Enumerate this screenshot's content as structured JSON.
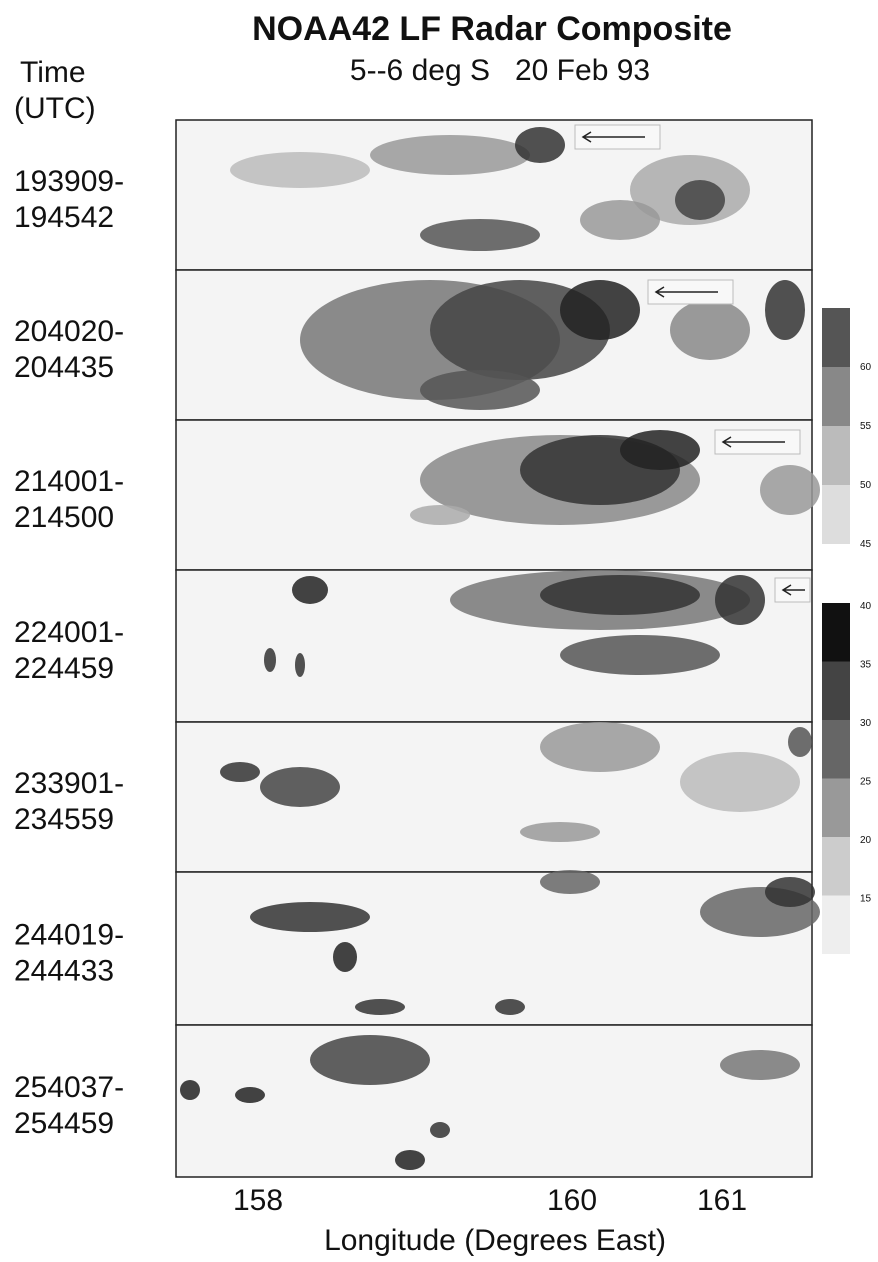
{
  "title": "NOAA42 LF Radar Composite",
  "subtitle": "5--6 deg S   20 Feb 93",
  "time_label": [
    "Time",
    "(UTC)"
  ],
  "panels": [
    {
      "start": "193909-",
      "end": "194542"
    },
    {
      "start": "204020-",
      "end": "204435"
    },
    {
      "start": "214001-",
      "end": "214500"
    },
    {
      "start": "224001-",
      "end": "224459"
    },
    {
      "start": "233901-",
      "end": "234559"
    },
    {
      "start": "244019-",
      "end": "244433"
    },
    {
      "start": "254037-",
      "end": "254459"
    }
  ],
  "x_axis": {
    "ticks": [
      "158",
      "160",
      "161"
    ],
    "label": "Longitude (Degrees East)"
  },
  "colorbar_upper": [
    "60",
    "55",
    "50",
    "45"
  ],
  "colorbar_lower": [
    "40",
    "35",
    "30",
    "25",
    "20",
    "15"
  ]
}
